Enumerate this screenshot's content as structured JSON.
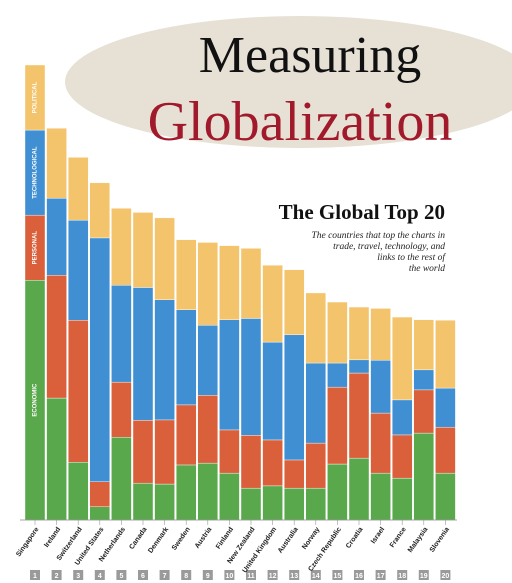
{
  "chart_data": {
    "type": "stacked_bar",
    "title": "Measuring",
    "title2": "Globalization",
    "subtitle": "The Global Top 20",
    "description": [
      "The countries that top the charts in",
      "trade, travel, technology, and",
      "links to the rest of",
      "the world"
    ],
    "categories": [
      "Singapore",
      "Ireland",
      "Switzerland",
      "United States",
      "Netherlands",
      "Canada",
      "Denmark",
      "Sweden",
      "Austria",
      "Finland",
      "New Zealand",
      "United Kingdom",
      "Australia",
      "Norway",
      "Czech Republic",
      "Croatia",
      "Israel",
      "France",
      "Malaysia",
      "Slovenia"
    ],
    "ranks": [
      1,
      2,
      3,
      4,
      5,
      6,
      7,
      8,
      9,
      10,
      11,
      12,
      13,
      14,
      15,
      16,
      17,
      18,
      19,
      20
    ],
    "ylim": [
      0,
      100
    ],
    "series": [
      {
        "name": "ECONOMIC",
        "color": "#5aa84c",
        "values": [
          52.7,
          26.8,
          12.7,
          2.9,
          18.2,
          8.1,
          7.9,
          12.1,
          12.5,
          10.3,
          7.0,
          7.5,
          7.0,
          7.0,
          12.3,
          13.6,
          10.3,
          9.2,
          19.1,
          10.3
        ]
      },
      {
        "name": "PERSONAL",
        "color": "#d9603a",
        "values": [
          14.3,
          27.0,
          31.2,
          5.5,
          12.1,
          13.8,
          14.1,
          13.2,
          14.9,
          9.5,
          11.6,
          10.1,
          6.2,
          9.9,
          16.9,
          18.7,
          13.2,
          9.5,
          9.5,
          10.1
        ]
      },
      {
        "name": "TECHNOLOGICAL",
        "color": "#3f8fd2",
        "values": [
          18.7,
          16.9,
          22.0,
          53.6,
          21.3,
          29.2,
          26.4,
          20.9,
          15.4,
          24.2,
          25.7,
          21.5,
          27.5,
          17.6,
          5.3,
          2.9,
          11.6,
          7.7,
          4.4,
          8.6
        ]
      },
      {
        "name": "POLITICAL",
        "color": "#f3c46c",
        "values": [
          14.3,
          15.4,
          13.8,
          12.1,
          16.9,
          16.5,
          18.0,
          15.4,
          18.2,
          16.3,
          15.4,
          16.9,
          14.3,
          15.4,
          13.4,
          11.6,
          11.4,
          18.2,
          11.0,
          14.9
        ]
      }
    ]
  }
}
